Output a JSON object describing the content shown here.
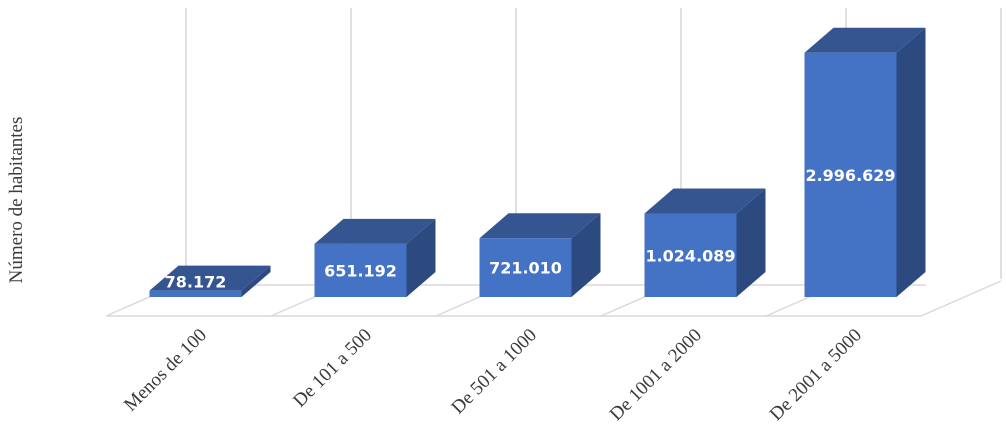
{
  "chart_data": {
    "type": "bar",
    "title": "",
    "xlabel": "",
    "ylabel": "Número de habitantes",
    "categories": [
      "Menos de 100",
      "De 101 a 500",
      "De 501 a 1000",
      "De 1001 a 2000",
      "De 2001 a 5000"
    ],
    "values": [
      78172,
      651192,
      721010,
      1024089,
      2996629
    ],
    "data_labels": [
      "78.172",
      "651.192",
      "721.010",
      "1.024.089",
      "2.996.629"
    ],
    "ylim": [
      0,
      3300000
    ],
    "grid": true,
    "legend": "none",
    "style": "3d-column"
  },
  "colors": {
    "bar_front": "#4472c4",
    "bar_top": "#34558f",
    "bar_side": "#2c4a80",
    "grid": "#d9d9d9",
    "text": "#3b3b3b"
  }
}
